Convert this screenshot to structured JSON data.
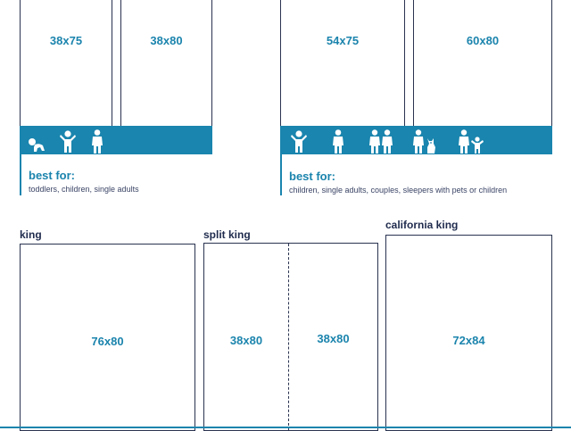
{
  "colors": {
    "accent": "#1a85ae",
    "ink": "#1f2b4d",
    "outline": "#2a3350"
  },
  "top_left": {
    "beds": [
      "38x75",
      "38x80"
    ],
    "icons": [
      "baby-icon",
      "child-icon",
      "adult-icon"
    ],
    "best_for_title": "best for:",
    "best_for_desc": "toddlers, children, single adults"
  },
  "top_right": {
    "beds": [
      "54x75",
      "60x80"
    ],
    "icons": [
      "child-icon",
      "adult-icon",
      "couple-icon",
      "adult-with-pet-icon",
      "adult-with-child-icon"
    ],
    "best_for_title": "best for:",
    "best_for_desc": "children, single adults, couples, sleepers with pets or children"
  },
  "bottom": {
    "king": {
      "label": "king",
      "size": "76x80"
    },
    "split_king": {
      "label": "split king",
      "left_size": "38x80",
      "right_size": "38x80"
    },
    "california_king": {
      "label": "california king",
      "size": "72x84"
    }
  }
}
